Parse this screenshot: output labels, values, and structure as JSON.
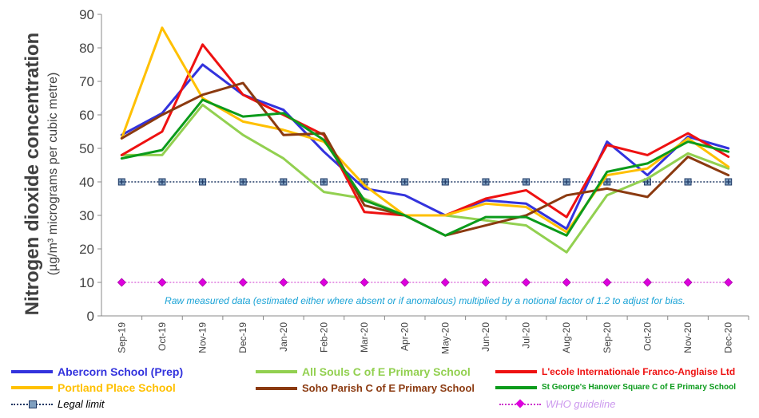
{
  "chart_data": {
    "type": "line",
    "ylabel": "Nitrogen dioxide concentration",
    "ylabel_unit": "(µg/m³ micrograms per cubic metre)",
    "ylim": [
      0,
      90
    ],
    "yticks": [
      0,
      10,
      20,
      30,
      40,
      50,
      60,
      70,
      80,
      90
    ],
    "categories": [
      "Sep-19",
      "Oct-19",
      "Nov-19",
      "Dec-19",
      "Jan-20",
      "Feb-20",
      "Mar-20",
      "Apr-20",
      "May-20",
      "Jun-20",
      "Jul-20",
      "Aug-20",
      "Sep-20",
      "Oct-20",
      "Nov-20",
      "Dec-20"
    ],
    "annotation": "Raw measured data (estimated either where absent or if anomalous) multiplied by a notional factor of 1.2 to adjust for bias.",
    "grid": false,
    "legend_position": "bottom",
    "series": [
      {
        "name": "Abercorn School (Prep)",
        "color": "#3333dd",
        "values": [
          54,
          60.5,
          75,
          66,
          61.5,
          49,
          38,
          36,
          30,
          34.5,
          33.5,
          26,
          52,
          42,
          53.5,
          50
        ]
      },
      {
        "name": "All Souls C of E Primary School",
        "color": "#92d050",
        "values": [
          48,
          48,
          63,
          54,
          47,
          37,
          35,
          30,
          30,
          28.5,
          27,
          19,
          36,
          41,
          48.5,
          44
        ]
      },
      {
        "name": "L'ecole Internationale Franco-Anglaise Ltd",
        "color": "#ee1111",
        "values": [
          48,
          55,
          81,
          66,
          60,
          54,
          31,
          30,
          30,
          35,
          37.5,
          29.5,
          51,
          48,
          54.5,
          47.5
        ]
      },
      {
        "name": "Portland Place School",
        "color": "#ffc000",
        "values": [
          53,
          86,
          65,
          58,
          55.5,
          52,
          39,
          30,
          30,
          33.5,
          32.5,
          25,
          42,
          44,
          53,
          44.5
        ]
      },
      {
        "name": "Soho Parish C of E Primary School",
        "color": "#8b3a10",
        "values": [
          53,
          60,
          66,
          69.5,
          54,
          54.5,
          33,
          30,
          24,
          27,
          30,
          36,
          38,
          35.5,
          47.5,
          42
        ]
      },
      {
        "name": "St George's Hanover Square C of E Primary School",
        "color": "#0b9b1b",
        "values": [
          47,
          49.5,
          64.5,
          59.5,
          60.5,
          52.5,
          34.5,
          30,
          24,
          29.5,
          29.5,
          24,
          43,
          45.5,
          52,
          49
        ]
      }
    ],
    "reference_lines": [
      {
        "name": "Legal limit",
        "value": 40,
        "color": "#1f3864",
        "marker_color": "#7f9fbf"
      },
      {
        "name": "WHO guideline",
        "value": 10,
        "color": "#cc33cc",
        "marker_color": "#dd00dd"
      }
    ]
  }
}
